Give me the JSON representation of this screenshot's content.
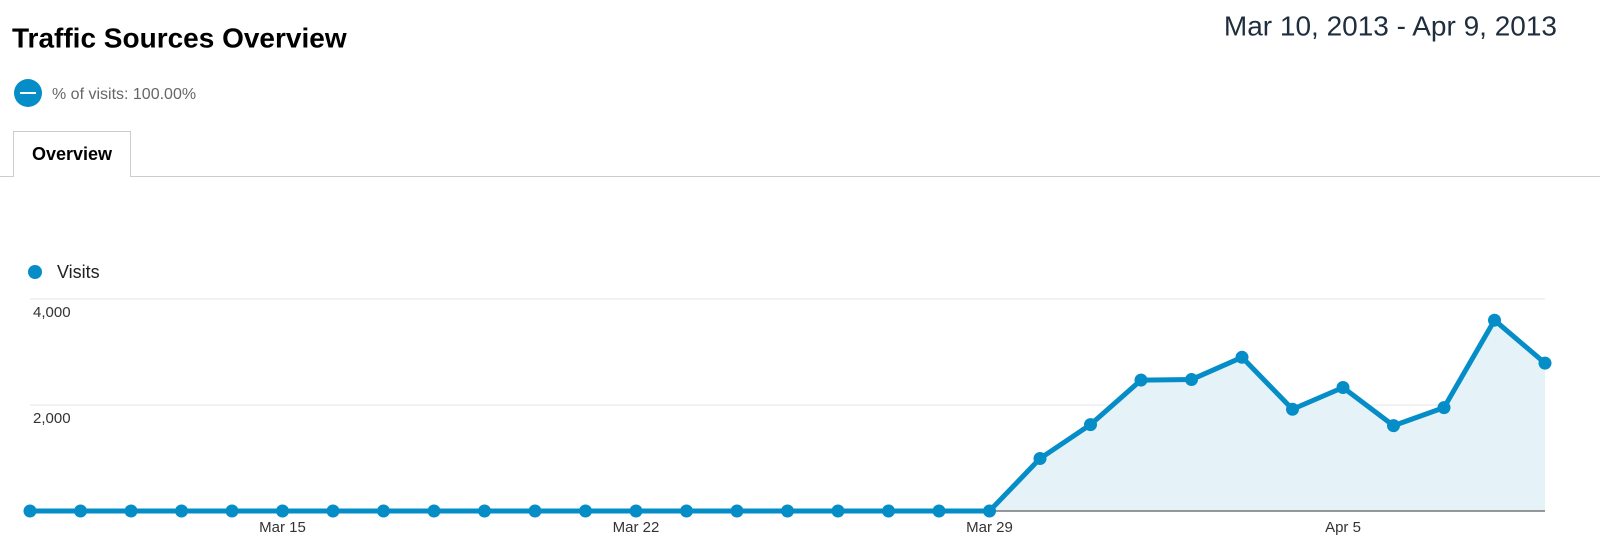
{
  "header": {
    "title": "Traffic Sources Overview",
    "date_range": "Mar 10, 2013 - Apr 9, 2013",
    "segment": "% of visits: 100.00%",
    "tab": "Overview"
  },
  "chart_data": {
    "type": "line",
    "categories": [
      null,
      null,
      null,
      null,
      null,
      "Mar 15",
      null,
      null,
      null,
      null,
      null,
      null,
      "Mar 22",
      null,
      null,
      null,
      null,
      null,
      null,
      "Mar 29",
      null,
      null,
      null,
      null,
      null,
      null,
      "Apr 5",
      null,
      null,
      null,
      null
    ],
    "series": [
      {
        "name": "Visits",
        "color": "#058dc7",
        "area_color": "#e5f2f8",
        "values": [
          0,
          0,
          0,
          0,
          0,
          0,
          0,
          0,
          0,
          0,
          0,
          0,
          0,
          0,
          0,
          0,
          0,
          0,
          0,
          0,
          990,
          1630,
          2470,
          2480,
          2900,
          1920,
          2330,
          1610,
          1950,
          3600,
          2790
        ]
      }
    ],
    "ylim": [
      0,
      4000
    ],
    "yticks": [
      {
        "value": 2000,
        "label": "2,000"
      },
      {
        "value": 4000,
        "label": "4,000"
      }
    ],
    "grid": true
  }
}
